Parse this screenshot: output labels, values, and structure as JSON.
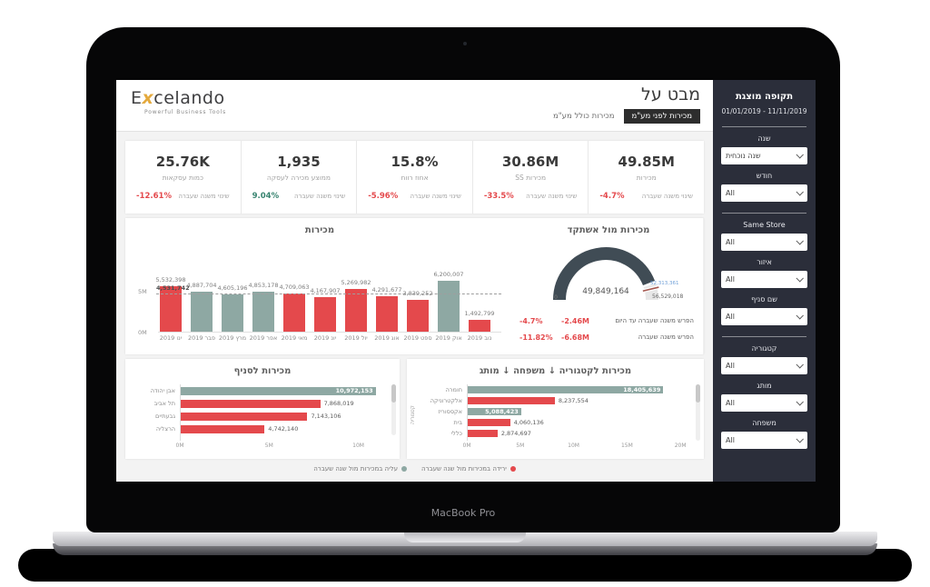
{
  "laptop": {
    "model_label": "MacBook Pro"
  },
  "brand": {
    "logo_prefix": "E",
    "logo_x": "x",
    "logo_suffix": "celando",
    "tagline": "Powerful Business Tools"
  },
  "header": {
    "title": "מבט על",
    "tab_selected": "מכירות לפני מע\"מ",
    "tab_unselected": "מכירות כולל מע\"מ"
  },
  "kpis": [
    {
      "value": "49.85M",
      "label": "מכירות",
      "change": "-4.7%",
      "change_label": "שינוי משנה שעברה",
      "negative": true
    },
    {
      "value": "30.86M",
      "label": "מכירות SS",
      "change": "-33.5%",
      "change_label": "שינוי משנה שעברה",
      "negative": true
    },
    {
      "value": "15.8%",
      "label": "אחוז רווח",
      "change": "-5.96%",
      "change_label": "שינוי משנה שעברה",
      "negative": true
    },
    {
      "value": "1,935",
      "label": "ממוצע מכירה לעסקה",
      "change": "9.04%",
      "change_label": "שינוי משנה שעברה",
      "negative": false
    },
    {
      "value": "25.76K",
      "label": "כמות עסקאות",
      "change": "-12.61%",
      "change_label": "שינוי משנה שעברה",
      "negative": true
    }
  ],
  "chart_data": [
    {
      "type": "bar",
      "title": "מכירות",
      "ylabel": "",
      "y_ticks": [
        "5M",
        "0M"
      ],
      "ylim": [
        0,
        6500000
      ],
      "scale_ref": 5000000,
      "avg_line_value": 4531742,
      "avg_line_label": "4,531,742",
      "categories": [
        "ינו 2019",
        "פבר 2019",
        "מרץ 2019",
        "אפר 2019",
        "מאי 2019",
        "יונ 2019",
        "יול 2019",
        "אוג 2019",
        "ספט 2019",
        "אוק 2019",
        "נוב 2019"
      ],
      "bars": [
        {
          "month": "ינו 2019",
          "value": 5532398,
          "label": "5,532,398",
          "up": false
        },
        {
          "month": "פבר 2019",
          "value": 4887704,
          "label": "4,887,704",
          "up": true
        },
        {
          "month": "מרץ 2019",
          "value": 4605196,
          "label": "4,605,196",
          "up": true
        },
        {
          "month": "אפר 2019",
          "value": 4853178,
          "label": "4,853,178",
          "up": true
        },
        {
          "month": "מאי 2019",
          "value": 4709063,
          "label": "4,709,063",
          "up": false
        },
        {
          "month": "יונ 2019",
          "value": 4167907,
          "label": "4,167,907",
          "up": false
        },
        {
          "month": "יול 2019",
          "value": 5269982,
          "label": "5,269,982",
          "up": false
        },
        {
          "month": "אוג 2019",
          "value": 4291677,
          "label": "4,291,677",
          "up": false
        },
        {
          "month": "ספט 2019",
          "value": 3839252,
          "label": "3,839,252",
          "up": false
        },
        {
          "month": "אוק 2019",
          "value": 6200007,
          "label": "6,200,007",
          "up": true
        },
        {
          "month": "נוב 2019",
          "value": 1492799,
          "label": "1,492,799",
          "up": false
        }
      ]
    },
    {
      "type": "gauge",
      "title": "מכירות מול אשתקד",
      "value": 49849164,
      "target": 52313361,
      "max": 56529018,
      "value_label": "49,849,164",
      "min_label": "0",
      "target_label": "52,313,361",
      "max_label": "56,529,018",
      "rows": [
        {
          "pct": "-4.7%",
          "amount": "-2.46M",
          "label": "הפרש משנה שעברה עד היום"
        },
        {
          "pct": "-11.82%",
          "amount": "-6.68M",
          "label": "הפרש משנה שעברה"
        }
      ]
    },
    {
      "type": "bar",
      "title": "מכירות לסניף",
      "x_ticks": [
        "0M",
        "5M",
        "10M"
      ],
      "tick_step": 5000000,
      "scale_max": 11600000,
      "bars": [
        {
          "name": "אבן יהודה",
          "value": 10972153,
          "label": "10,972,153",
          "up": true
        },
        {
          "name": "תל אביב",
          "value": 7868019,
          "label": "7,868,019",
          "up": false
        },
        {
          "name": "גבעתיים",
          "value": 7143106,
          "label": "7,143,106",
          "up": false
        },
        {
          "name": "הרצליה",
          "value": 4742140,
          "label": "4,742,140",
          "up": false
        }
      ]
    },
    {
      "type": "bar",
      "title": "מכירות לקטגוריה ↓ משפחה ↓ מותג",
      "axis_label": "קטגוריה",
      "x_ticks": [
        "0M",
        "5M",
        "10M",
        "15M",
        "20M"
      ],
      "tick_step": 5000000,
      "scale_max": 21000000,
      "bars": [
        {
          "name": "חומרה",
          "value": 18405639,
          "label": "18,405,639",
          "up": true
        },
        {
          "name": "אלקטרוניקה",
          "value": 8237554,
          "label": "8,237,554",
          "up": false
        },
        {
          "name": "אקססוריז",
          "value": 5088423,
          "label": "5,088,423",
          "up": true
        },
        {
          "name": "בית",
          "value": 4060136,
          "label": "4,060,136",
          "up": false
        },
        {
          "name": "כללי",
          "value": 2874697,
          "label": "2,874,697",
          "up": false
        }
      ]
    }
  ],
  "legend": [
    {
      "label": "ירידה במכירות מול שנה שעברה",
      "color": "#e4494c"
    },
    {
      "label": "עליה במכירות מול שנה שעברה",
      "color": "#8ea8a3"
    }
  ],
  "sidebar": {
    "period_title": "תקופה מוצגת",
    "period_value": "01/01/2019 - 11/11/2019",
    "filters": [
      {
        "label": "שנה",
        "value": "שנה נוכחית",
        "divider_after": false
      },
      {
        "label": "חודש",
        "value": "All",
        "divider_after": true
      },
      {
        "label": "Same Store",
        "value": "All",
        "divider_after": false
      },
      {
        "label": "איזור",
        "value": "All",
        "divider_after": false
      },
      {
        "label": "שם סניף",
        "value": "All",
        "divider_after": true
      },
      {
        "label": "קטגוריה",
        "value": "All",
        "divider_after": false
      },
      {
        "label": "מותג",
        "value": "All",
        "divider_after": false
      },
      {
        "label": "משפחה",
        "value": "All",
        "divider_after": false
      }
    ]
  },
  "colors": {
    "red": "#e4494c",
    "sage": "#8ea8a3",
    "green": "#37836f",
    "sidebar_bg": "#2b2e3a",
    "tab_bg": "#2d2d2d",
    "gauge_dark": "#404c55",
    "gauge_light": "#e7e7e7",
    "gauge_target_line": "#a4574f",
    "gauge_target_text": "#70a0d8"
  }
}
